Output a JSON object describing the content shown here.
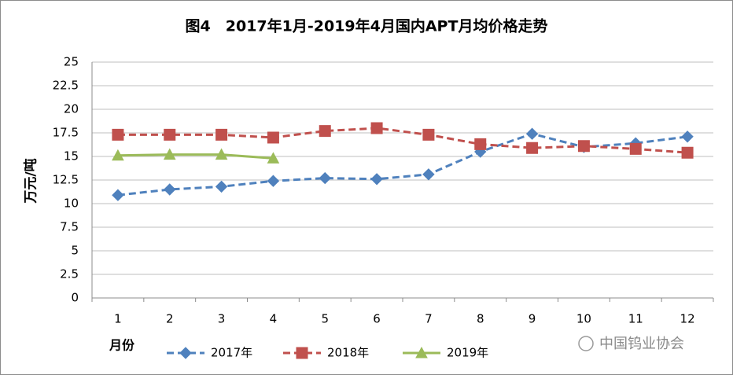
{
  "chart_data": {
    "type": "line",
    "title": "图4　2017年1月-2019年4月国内APT月均价格走势",
    "y_label": "万元/吨",
    "x_label": "月份",
    "watermark": "中国钨业协会",
    "categories": [
      "1",
      "2",
      "3",
      "4",
      "5",
      "6",
      "7",
      "8",
      "9",
      "10",
      "11",
      "12"
    ],
    "series": [
      {
        "name": "2017年",
        "color": "#4f81bd",
        "marker": "diamond",
        "line_style": "dashed",
        "values": [
          10.9,
          11.5,
          11.8,
          12.4,
          12.7,
          12.6,
          13.1,
          15.5,
          17.4,
          16.0,
          16.4,
          17.1
        ]
      },
      {
        "name": "2018年",
        "color": "#c0504d",
        "marker": "square",
        "line_style": "dashed",
        "values": [
          17.3,
          17.3,
          17.3,
          17.0,
          17.7,
          18.0,
          17.3,
          16.3,
          15.9,
          16.1,
          15.8,
          15.4
        ]
      },
      {
        "name": "2019年",
        "color": "#9bbb59",
        "marker": "triangle",
        "line_style": "solid",
        "values": [
          15.1,
          15.2,
          15.2,
          14.8,
          null,
          null,
          null,
          null,
          null,
          null,
          null,
          null
        ]
      }
    ],
    "ylim": [
      0,
      25
    ],
    "yticks": [
      0,
      2.5,
      5,
      7.5,
      10,
      12.5,
      15,
      17.5,
      20,
      22.5,
      25
    ],
    "grid": true,
    "legend": "bottom"
  }
}
